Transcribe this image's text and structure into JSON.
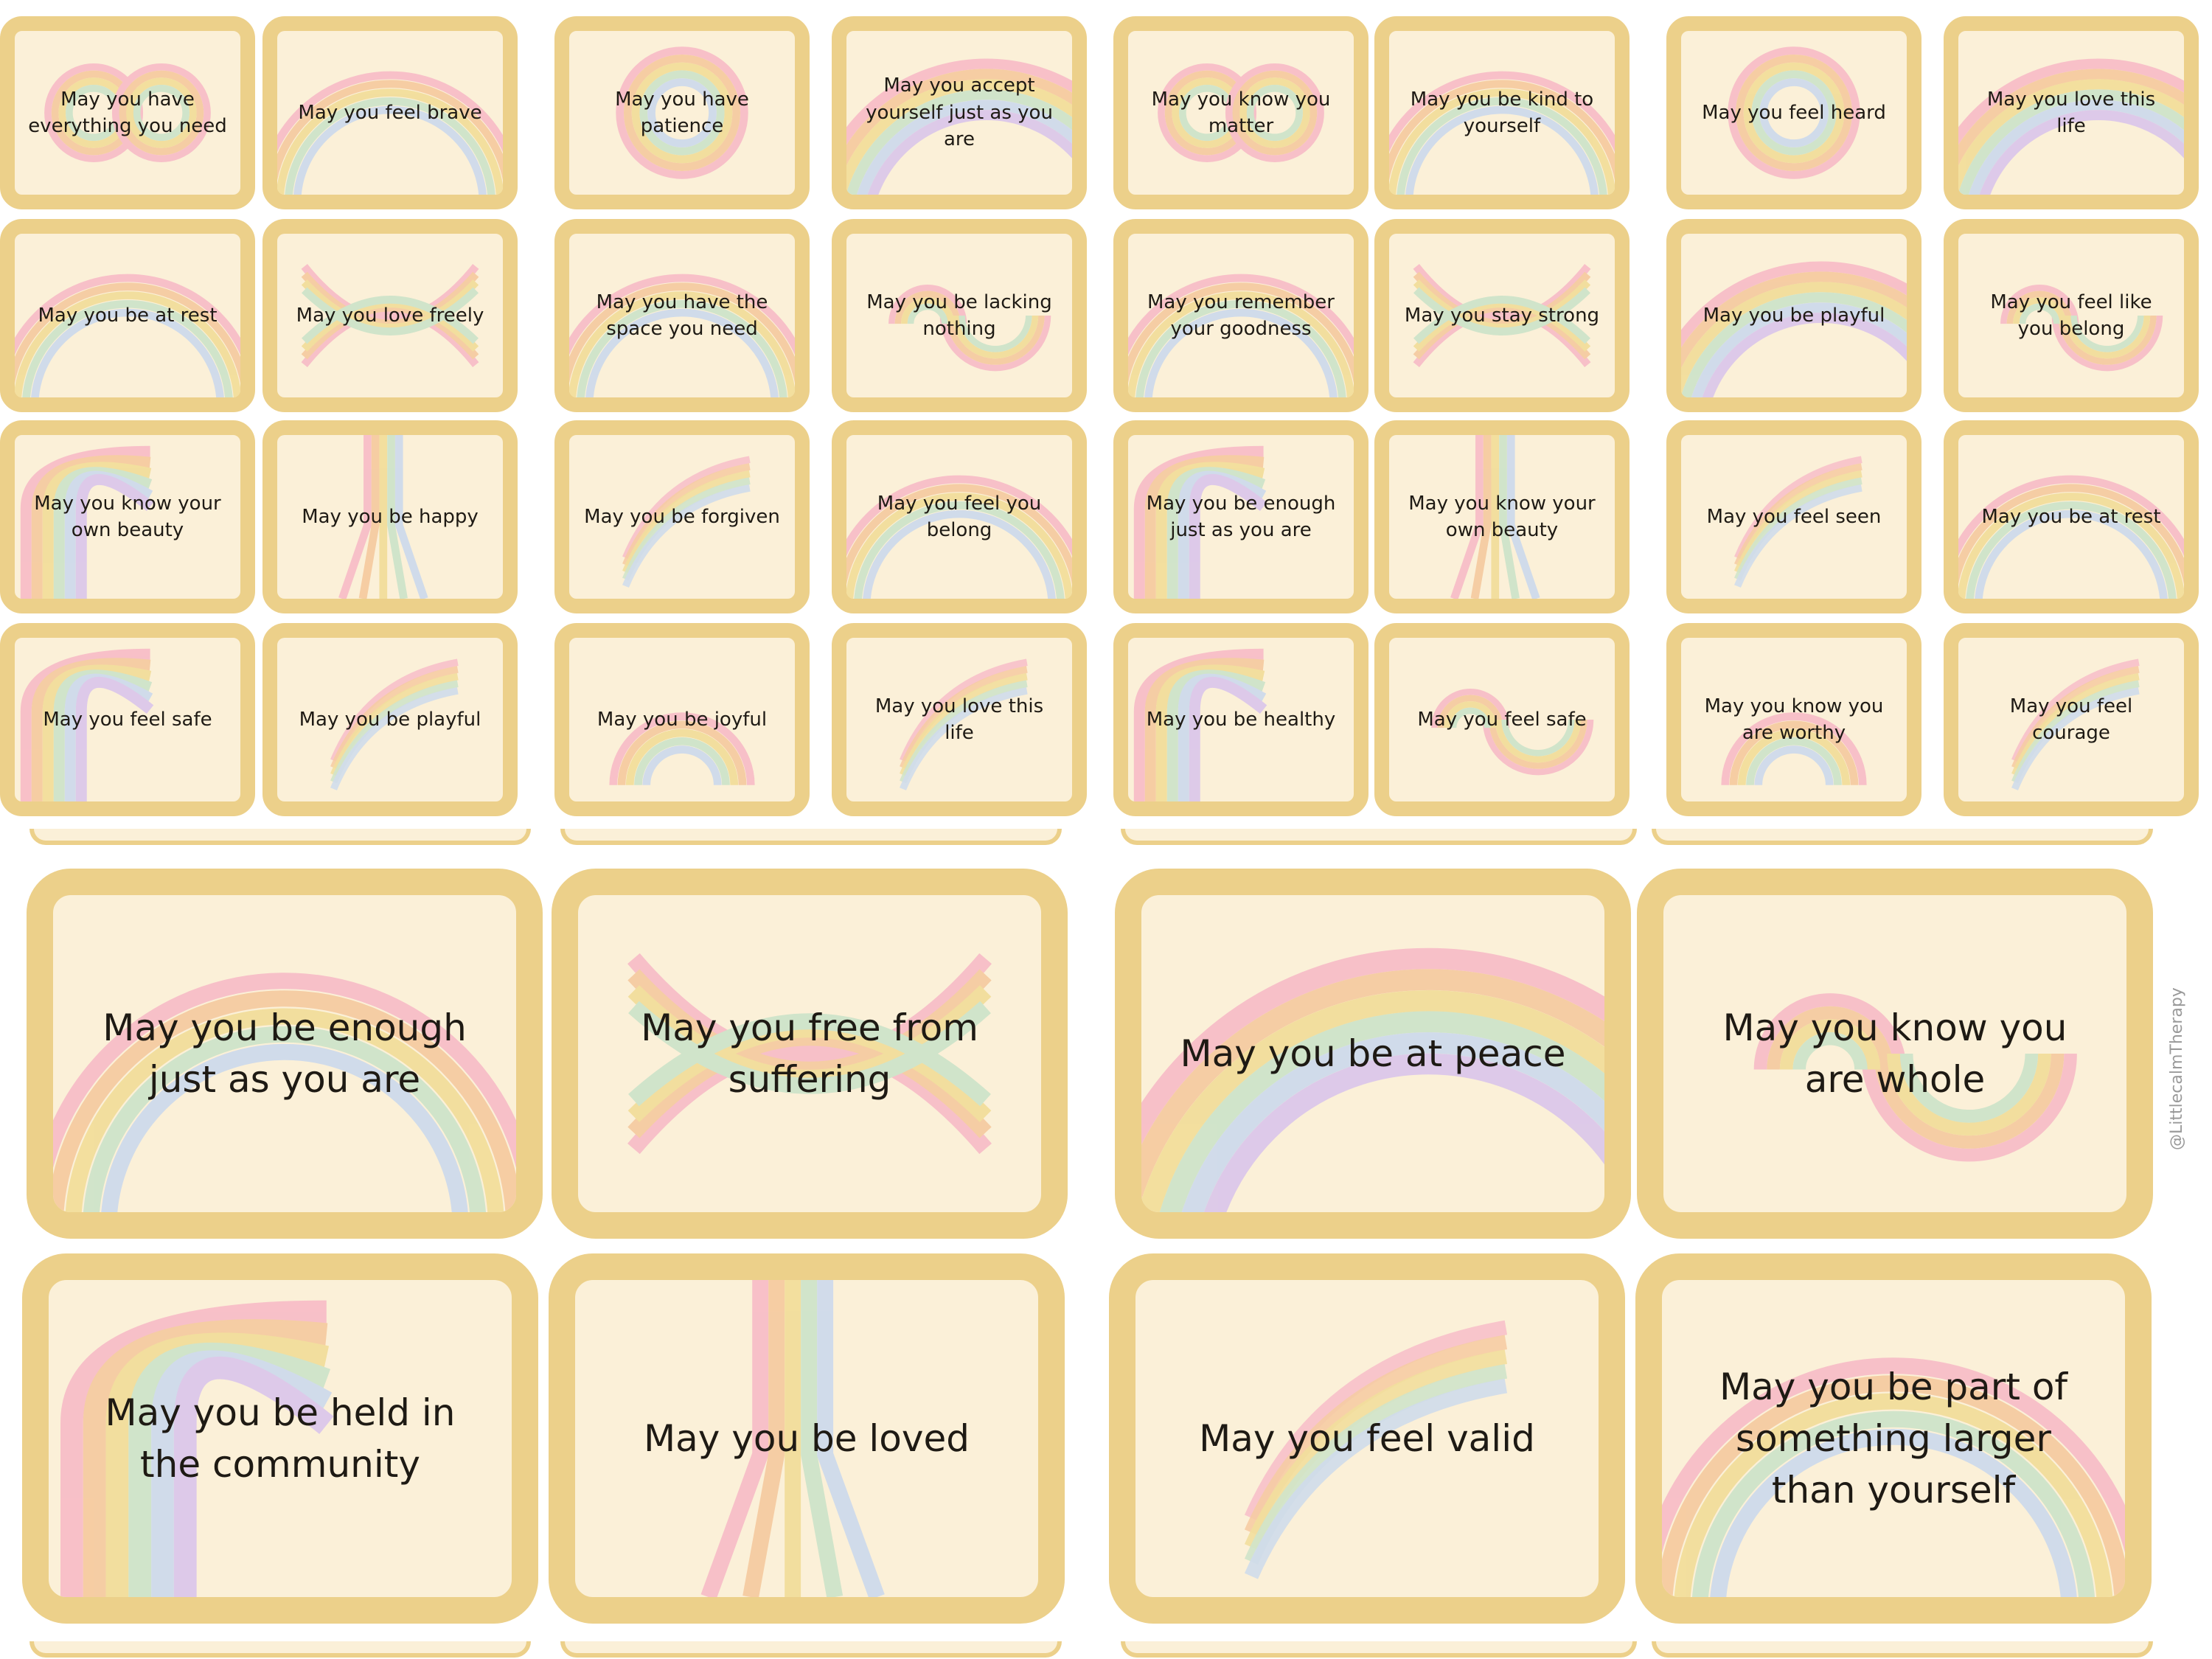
{
  "palette": {
    "frame": "#ecd08a",
    "card": "#fbf0d8",
    "rainbow": [
      "#f7b8c6",
      "#f5c79b",
      "#f1dc94",
      "#c9e2c8",
      "#c9d8ee",
      "#d8c3ec"
    ]
  },
  "small_cards": [
    {
      "text": "May you have everything you need",
      "icon": "infinity-rainbow-icon"
    },
    {
      "text": "May you feel brave",
      "icon": "arch-rainbow-icon"
    },
    {
      "text": "May you have patience",
      "icon": "circle-rainbow-icon"
    },
    {
      "text": "May you accept yourself just as you are",
      "icon": "corner-rainbow-icon"
    },
    {
      "text": "May you know you matter",
      "icon": "infinity-rainbow-icon"
    },
    {
      "text": "May you be kind to yourself",
      "icon": "arch-rainbow-icon"
    },
    {
      "text": "May you feel heard",
      "icon": "circle-rainbow-icon"
    },
    {
      "text": "May you love this life",
      "icon": "corner-rainbow-icon"
    },
    {
      "text": "May you be at rest",
      "icon": "arch-rainbow-icon"
    },
    {
      "text": "May you love freely",
      "icon": "bowtie-rainbow-icon"
    },
    {
      "text": "May you have the space you need",
      "icon": "arch-rainbow-icon"
    },
    {
      "text": "May you be lacking nothing",
      "icon": "wave-rainbow-icon"
    },
    {
      "text": "May you remember your goodness",
      "icon": "arch-rainbow-icon"
    },
    {
      "text": "May you stay strong",
      "icon": "bowtie-rainbow-icon"
    },
    {
      "text": "May you be playful",
      "icon": "corner-rainbow-icon"
    },
    {
      "text": "May you feel like you belong",
      "icon": "wave-rainbow-icon"
    },
    {
      "text": "May you know your own beauty",
      "icon": "bend-rainbow-icon"
    },
    {
      "text": "May you be happy",
      "icon": "road-rainbow-icon"
    },
    {
      "text": "May you be forgiven",
      "icon": "brush-rainbow-icon"
    },
    {
      "text": "May you feel you belong",
      "icon": "arch-rainbow-icon"
    },
    {
      "text": "May you be enough just as you are",
      "icon": "bend-rainbow-icon"
    },
    {
      "text": "May you know your own beauty",
      "icon": "road-rainbow-icon"
    },
    {
      "text": "May you feel seen",
      "icon": "brush-rainbow-icon"
    },
    {
      "text": "May you be at rest",
      "icon": "arch-rainbow-icon"
    },
    {
      "text": "May you feel safe",
      "icon": "bend-rainbow-icon"
    },
    {
      "text": "May you be playful",
      "icon": "brush-rainbow-icon"
    },
    {
      "text": "May you be joyful",
      "icon": "half-rainbow-icon"
    },
    {
      "text": "May you love this life",
      "icon": "brush-rainbow-icon"
    },
    {
      "text": "May you be healthy",
      "icon": "bend-rainbow-icon"
    },
    {
      "text": "May you feel safe",
      "icon": "wave-rainbow-icon"
    },
    {
      "text": "May you know you are worthy",
      "icon": "half-rainbow-icon"
    },
    {
      "text": "May you feel courage",
      "icon": "brush-rainbow-icon"
    }
  ],
  "big_cards": [
    {
      "text": "May you be enough just as you are",
      "icon": "arch-rainbow-icon"
    },
    {
      "text": "May you free from suffering",
      "icon": "bowtie-rainbow-icon"
    },
    {
      "text": "May you be at peace",
      "icon": "corner-rainbow-icon"
    },
    {
      "text": "May you know you are whole",
      "icon": "wave-rainbow-icon"
    },
    {
      "text": "May you be held in the community",
      "icon": "bend-rainbow-icon"
    },
    {
      "text": "May you be loved",
      "icon": "road-rainbow-icon"
    },
    {
      "text": "May you feel valid",
      "icon": "brush-rainbow-icon"
    },
    {
      "text": "May you be part of something larger than yourself",
      "icon": "arch-rainbow-icon"
    }
  ],
  "credit": "@LittlecalmTherapy"
}
